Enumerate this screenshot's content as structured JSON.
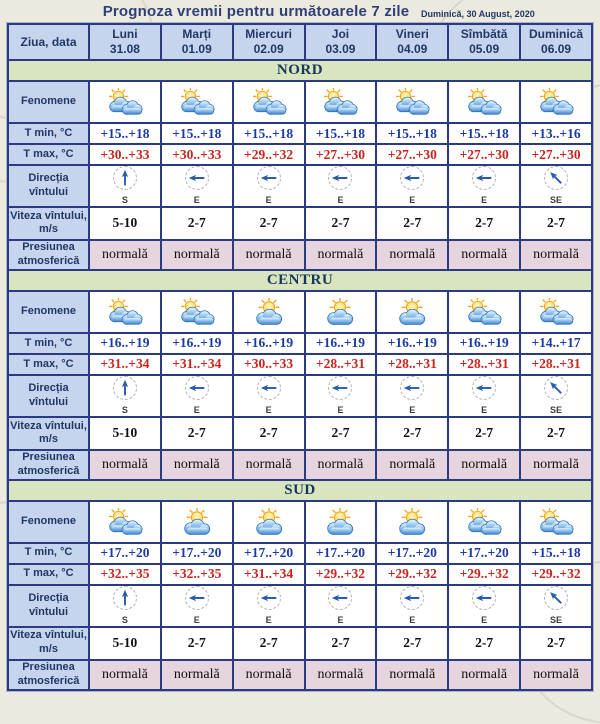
{
  "chart_data": {
    "type": "table",
    "title": "Prognoza vremii pentru următoarele 7 zile",
    "date": "Duminică, 30 August, 2020",
    "corner_label": "Ziua, data",
    "days": [
      {
        "name": "Luni",
        "date": "31.08"
      },
      {
        "name": "Marți",
        "date": "01.09"
      },
      {
        "name": "Miercuri",
        "date": "02.09"
      },
      {
        "name": "Joi",
        "date": "03.09"
      },
      {
        "name": "Vineri",
        "date": "04.09"
      },
      {
        "name": "Sîmbătă",
        "date": "05.09"
      },
      {
        "name": "Duminică",
        "date": "06.09"
      }
    ],
    "row_labels": {
      "phenomena": "Fenomene",
      "tmin": "T min, °C",
      "tmax": "T max, °C",
      "wind_dir": "Direcția vîntului",
      "wind_speed": "Viteza vîntului, m/s",
      "pressure": "Presiunea atmosferică"
    },
    "icon_legend": {
      "sun-2clouds": "sun with two clouds (partly cloudy)",
      "sun-1cloud": "sun with one cloud (mostly sunny)"
    },
    "wind_rotation_deg": {
      "S": 0,
      "E": -90,
      "SE": -45
    },
    "regions": [
      {
        "name": "NORD",
        "icons": [
          "sun-2clouds",
          "sun-2clouds",
          "sun-2clouds",
          "sun-2clouds",
          "sun-2clouds",
          "sun-2clouds",
          "sun-2clouds"
        ],
        "tmin": [
          "+15..+18",
          "+15..+18",
          "+15..+18",
          "+15..+18",
          "+15..+18",
          "+15..+18",
          "+13..+16"
        ],
        "tmax": [
          "+30..+33",
          "+30..+33",
          "+29..+32",
          "+27..+30",
          "+27..+30",
          "+27..+30",
          "+27..+30"
        ],
        "wind_dir": [
          "S",
          "E",
          "E",
          "E",
          "E",
          "E",
          "SE"
        ],
        "wind_speed": [
          "5-10",
          "2-7",
          "2-7",
          "2-7",
          "2-7",
          "2-7",
          "2-7"
        ],
        "pressure": [
          "normală",
          "normală",
          "normală",
          "normală",
          "normală",
          "normală",
          "normală"
        ]
      },
      {
        "name": "CENTRU",
        "icons": [
          "sun-2clouds",
          "sun-2clouds",
          "sun-1cloud",
          "sun-1cloud",
          "sun-1cloud",
          "sun-2clouds",
          "sun-2clouds"
        ],
        "tmin": [
          "+16..+19",
          "+16..+19",
          "+16..+19",
          "+16..+19",
          "+16..+19",
          "+16..+19",
          "+14..+17"
        ],
        "tmax": [
          "+31..+34",
          "+31..+34",
          "+30..+33",
          "+28..+31",
          "+28..+31",
          "+28..+31",
          "+28..+31"
        ],
        "wind_dir": [
          "S",
          "E",
          "E",
          "E",
          "E",
          "E",
          "SE"
        ],
        "wind_speed": [
          "5-10",
          "2-7",
          "2-7",
          "2-7",
          "2-7",
          "2-7",
          "2-7"
        ],
        "pressure": [
          "normală",
          "normală",
          "normală",
          "normală",
          "normală",
          "normală",
          "normală"
        ]
      },
      {
        "name": "SUD",
        "icons": [
          "sun-2clouds",
          "sun-1cloud",
          "sun-1cloud",
          "sun-1cloud",
          "sun-1cloud",
          "sun-2clouds",
          "sun-2clouds"
        ],
        "tmin": [
          "+17..+20",
          "+17..+20",
          "+17..+20",
          "+17..+20",
          "+17..+20",
          "+17..+20",
          "+15..+18"
        ],
        "tmax": [
          "+32..+35",
          "+32..+35",
          "+31..+34",
          "+29..+32",
          "+29..+32",
          "+29..+32",
          "+29..+32"
        ],
        "wind_dir": [
          "S",
          "E",
          "E",
          "E",
          "E",
          "E",
          "SE"
        ],
        "wind_speed": [
          "5-10",
          "2-7",
          "2-7",
          "2-7",
          "2-7",
          "2-7",
          "2-7"
        ],
        "pressure": [
          "normală",
          "normală",
          "normală",
          "normală",
          "normală",
          "normală",
          "normală"
        ]
      }
    ]
  },
  "colors": {
    "title_text": "#2f4079",
    "header_bg": "#c7d4ee",
    "header_text": "#1f3864",
    "section_bg": "#d9e5bf",
    "section_text": "#17365d",
    "tmin_text": "#1c3aa3",
    "tmax_text": "#c9241e",
    "pressure_bg": "#e6d5df",
    "table_border": "#2b3a85",
    "wind_arrow": "#2a5caa",
    "page_bg": "#ece9df"
  }
}
